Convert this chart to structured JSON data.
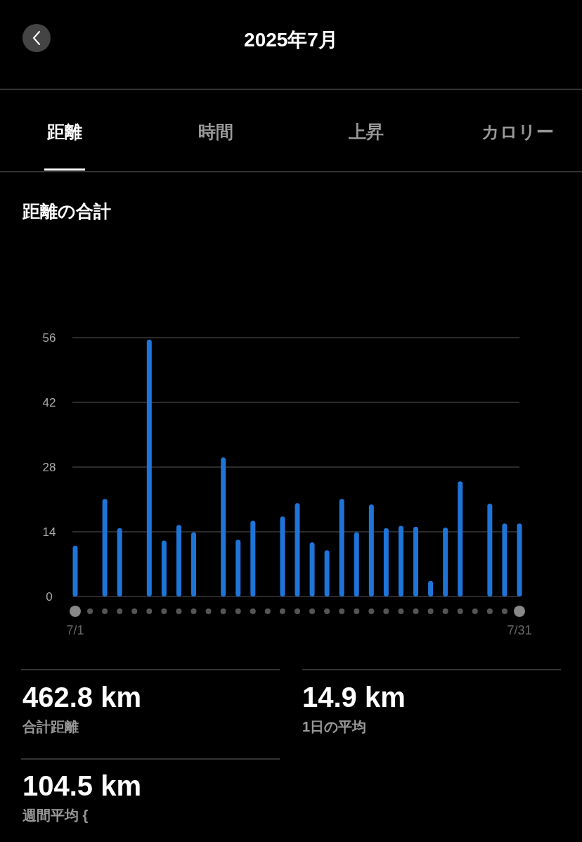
{
  "chart_data": {
    "type": "bar",
    "title": "2025年7月",
    "subtitle": "距離の合計",
    "categories": [
      "7/1",
      null,
      null,
      null,
      null,
      null,
      null,
      null,
      null,
      null,
      null,
      null,
      null,
      null,
      null,
      null,
      null,
      null,
      null,
      null,
      null,
      null,
      null,
      null,
      null,
      null,
      null,
      null,
      null,
      null,
      "7/31"
    ],
    "values": [
      11.0,
      null,
      21.1,
      14.8,
      null,
      55.6,
      12.1,
      15.5,
      13.9,
      null,
      30.1,
      12.3,
      16.4,
      null,
      17.3,
      20.2,
      11.7,
      10.0,
      21.1,
      13.9,
      19.9,
      14.8,
      15.3,
      15.1,
      3.4,
      14.9,
      24.9,
      null,
      20.1,
      15.8,
      15.8
    ],
    "color": "#1f74d8",
    "ylim": [
      0,
      56
    ],
    "yticks": [
      0,
      14,
      28,
      42,
      56
    ],
    "grid": "y",
    "annotations": [
      "距離",
      "時間",
      "上昇",
      "カロリー",
      "462.8 km",
      "合計距離",
      "14.9 km",
      "1日の平均",
      "104.5 km",
      "週間平均 {"
    ]
  }
}
